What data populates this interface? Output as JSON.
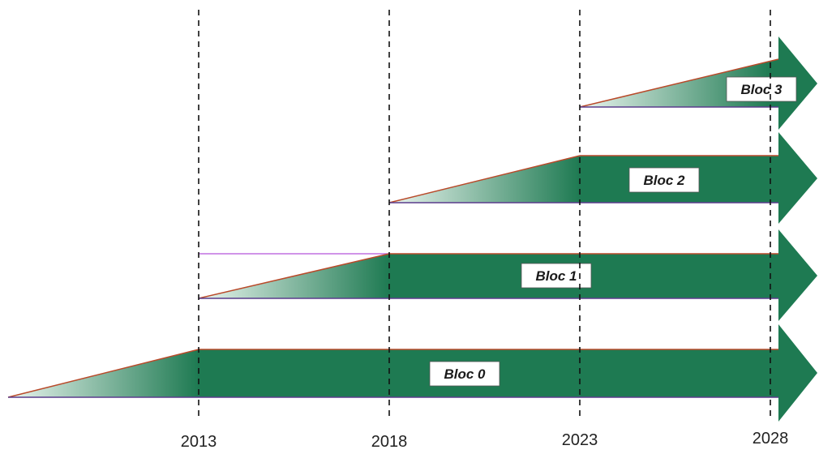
{
  "timeline": {
    "years": [
      "2013",
      "2018",
      "2023",
      "2028"
    ]
  },
  "blocs": [
    {
      "label": "Bloc 0",
      "start": "",
      "ramp_end": "2013"
    },
    {
      "label": "Bloc 1",
      "start": "2013",
      "ramp_end": "2018"
    },
    {
      "label": "Bloc 2",
      "start": "2018",
      "ramp_end": "2023"
    },
    {
      "label": "Bloc 3",
      "start": "2023",
      "ramp_end": "2028"
    }
  ],
  "colors": {
    "arrow_fill": "#1e7a52",
    "arrow_dark": "#16603f",
    "ramp_light": "#eaf5ef",
    "top_edge": "#b94a2a",
    "bottom_edge": "#5a3c8c",
    "guide_line": "#111111"
  }
}
